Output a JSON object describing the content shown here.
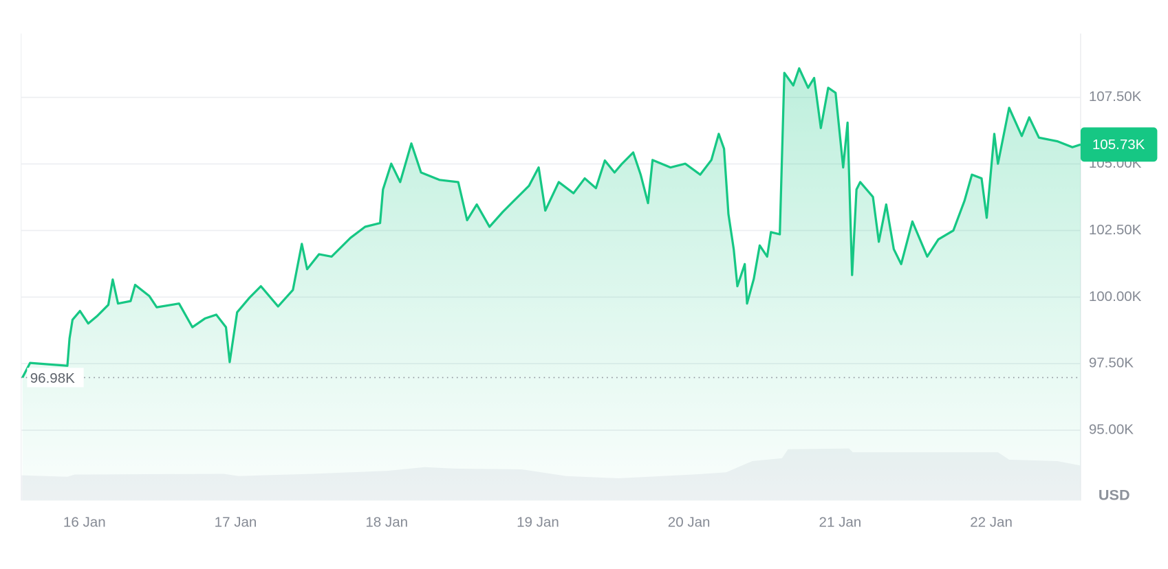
{
  "chart_data": {
    "type": "line",
    "color": "#16c784",
    "x": [
      15.59,
      15.64,
      15.887,
      15.901,
      15.921,
      15.97,
      16.025,
      16.084,
      16.158,
      16.187,
      16.222,
      16.305,
      16.335,
      16.429,
      16.478,
      16.626,
      16.714,
      16.798,
      16.872,
      16.936,
      16.961,
      17.01,
      17.094,
      17.167,
      17.281,
      17.379,
      17.438,
      17.473,
      17.552,
      17.635,
      17.759,
      17.857,
      17.956,
      17.975,
      18.03,
      18.089,
      18.163,
      18.227,
      18.35,
      18.473,
      18.532,
      18.596,
      18.68,
      18.768,
      18.842,
      18.941,
      19.005,
      19.049,
      19.138,
      19.236,
      19.31,
      19.384,
      19.443,
      19.507,
      19.557,
      19.631,
      19.68,
      19.729,
      19.759,
      19.877,
      19.975,
      20.074,
      20.148,
      20.197,
      20.232,
      20.261,
      20.296,
      20.32,
      20.369,
      20.384,
      20.429,
      20.468,
      20.517,
      20.542,
      20.601,
      20.631,
      20.69,
      20.729,
      20.788,
      20.828,
      20.872,
      20.921,
      20.97,
      21.02,
      21.049,
      21.079,
      21.108,
      21.133,
      21.217,
      21.256,
      21.305,
      21.355,
      21.404,
      21.478,
      21.576,
      21.65,
      21.749,
      21.823,
      21.872,
      21.936,
      21.97,
      22.02,
      22.044,
      22.118,
      22.202,
      22.251,
      22.315,
      22.438,
      22.537,
      22.591
    ],
    "values": [
      96980,
      97530,
      97420,
      98450,
      99150,
      99480,
      99010,
      99290,
      99710,
      100660,
      99760,
      99850,
      100460,
      100040,
      99620,
      99760,
      98870,
      99200,
      99340,
      98870,
      97560,
      99430,
      99990,
      100410,
      99650,
      100270,
      102000,
      101050,
      101610,
      101520,
      102220,
      102640,
      102780,
      104040,
      105010,
      104320,
      105770,
      104680,
      104400,
      104320,
      102890,
      103480,
      102640,
      103200,
      103620,
      104180,
      104870,
      103250,
      104320,
      103900,
      104460,
      104090,
      105130,
      104680,
      105010,
      105430,
      104600,
      103530,
      105150,
      104870,
      105010,
      104600,
      105150,
      106130,
      105570,
      103120,
      101800,
      100410,
      101240,
      99760,
      100690,
      101940,
      101520,
      102440,
      102360,
      108420,
      107950,
      108590,
      107860,
      108230,
      106350,
      107860,
      107670,
      104870,
      106550,
      100830,
      104040,
      104320,
      103760,
      102080,
      103480,
      101800,
      101240,
      102840,
      101520,
      102170,
      102500,
      103620,
      104600,
      104460,
      102980,
      106130,
      105010,
      107110,
      106050,
      106750,
      105990,
      105850,
      105630,
      105730
    ],
    "xlim": [
      15.581,
      22.591
    ],
    "ylim": [
      92360,
      109900
    ],
    "xticks": [
      {
        "value": 16,
        "label": "16 Jan"
      },
      {
        "value": 17,
        "label": "17 Jan"
      },
      {
        "value": 18,
        "label": "18 Jan"
      },
      {
        "value": 19,
        "label": "19 Jan"
      },
      {
        "value": 20,
        "label": "20 Jan"
      },
      {
        "value": 21,
        "label": "21 Jan"
      },
      {
        "value": 22,
        "label": "22 Jan"
      }
    ],
    "yticks": [
      {
        "value": 95000,
        "label": "95.00K"
      },
      {
        "value": 97500,
        "label": "97.50K"
      },
      {
        "value": 100000,
        "label": "100.00K"
      },
      {
        "value": 102500,
        "label": "102.50K"
      },
      {
        "value": 105000,
        "label": "105.00K"
      },
      {
        "value": 107500,
        "label": "107.50K"
      }
    ],
    "grid": true,
    "baseline": {
      "value": 96980,
      "label": "96.98K"
    },
    "last_price": {
      "value": 105730,
      "label": "105.73K"
    },
    "currency_label": "USD"
  }
}
